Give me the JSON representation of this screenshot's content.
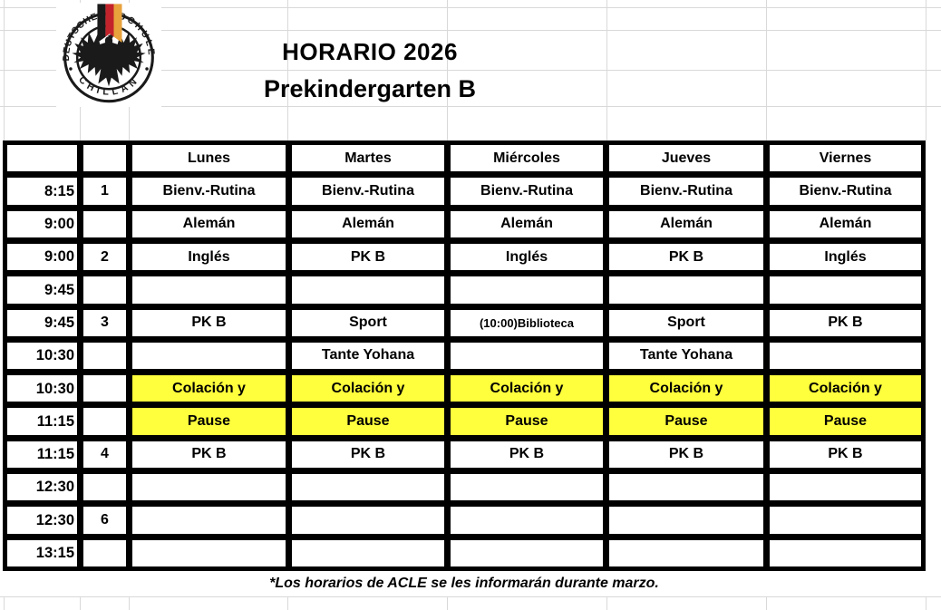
{
  "logo": {
    "ring_top_left": "DEUTSCHE",
    "ring_top_right": "SCHULE",
    "ring_bottom": "CHILLAN"
  },
  "header": {
    "title": "HORARIO 2026",
    "subtitle": "Prekindergarten B"
  },
  "table": {
    "day_headers": [
      "Lunes",
      "Martes",
      "Miércoles",
      "Jueves",
      "Viernes"
    ],
    "rows": [
      {
        "time": "8:15",
        "period": "1",
        "highlight": false,
        "cells": [
          "Bienv.-Rutina",
          "Bienv.-Rutina",
          "Bienv.-Rutina",
          "Bienv.-Rutina",
          "Bienv.-Rutina"
        ]
      },
      {
        "time": "9:00",
        "period": "",
        "highlight": false,
        "cells": [
          "Alemán",
          "Alemán",
          "Alemán",
          "Alemán",
          "Alemán"
        ]
      },
      {
        "time": "9:00",
        "period": "2",
        "highlight": false,
        "cells": [
          "Inglés",
          "PK B",
          "Inglés",
          "PK B",
          "Inglés"
        ]
      },
      {
        "time": "9:45",
        "period": "",
        "highlight": false,
        "cells": [
          "",
          "",
          "",
          "",
          ""
        ]
      },
      {
        "time": "9:45",
        "period": "3",
        "highlight": false,
        "cells": [
          "PK B",
          "Sport",
          "(10:00)Biblioteca",
          "Sport",
          "PK B"
        ]
      },
      {
        "time": "10:30",
        "period": "",
        "highlight": false,
        "cells": [
          "",
          "Tante Yohana",
          "",
          "Tante Yohana",
          ""
        ]
      },
      {
        "time": "10:30",
        "period": "",
        "highlight": true,
        "cells": [
          "Colación y",
          "Colación y",
          "Colación y",
          "Colación y",
          "Colación y"
        ]
      },
      {
        "time": "11:15",
        "period": "",
        "highlight": true,
        "cells": [
          "Pause",
          "Pause",
          "Pause",
          "Pause",
          "Pause"
        ]
      },
      {
        "time": "11:15",
        "period": "4",
        "highlight": false,
        "cells": [
          "PK B",
          "PK B",
          "PK B",
          "PK B",
          "PK B"
        ]
      },
      {
        "time": "12:30",
        "period": "",
        "highlight": false,
        "cells": [
          "",
          "",
          "",
          "",
          ""
        ]
      },
      {
        "time": "12:30",
        "period": "6",
        "highlight": false,
        "cells": [
          "",
          "",
          "",
          "",
          ""
        ]
      },
      {
        "time": "13:15",
        "period": "",
        "highlight": false,
        "cells": [
          "",
          "",
          "",
          "",
          ""
        ]
      }
    ]
  },
  "footnote": "*Los horarios de ACLE se les informarán durante marzo.",
  "colors": {
    "highlight": "#FFFF3D",
    "border": "#000000",
    "gridline": "#d9d9d9",
    "flag_black": "#1a1a1a",
    "flag_red": "#c3242b",
    "flag_gold": "#e8a33d"
  }
}
